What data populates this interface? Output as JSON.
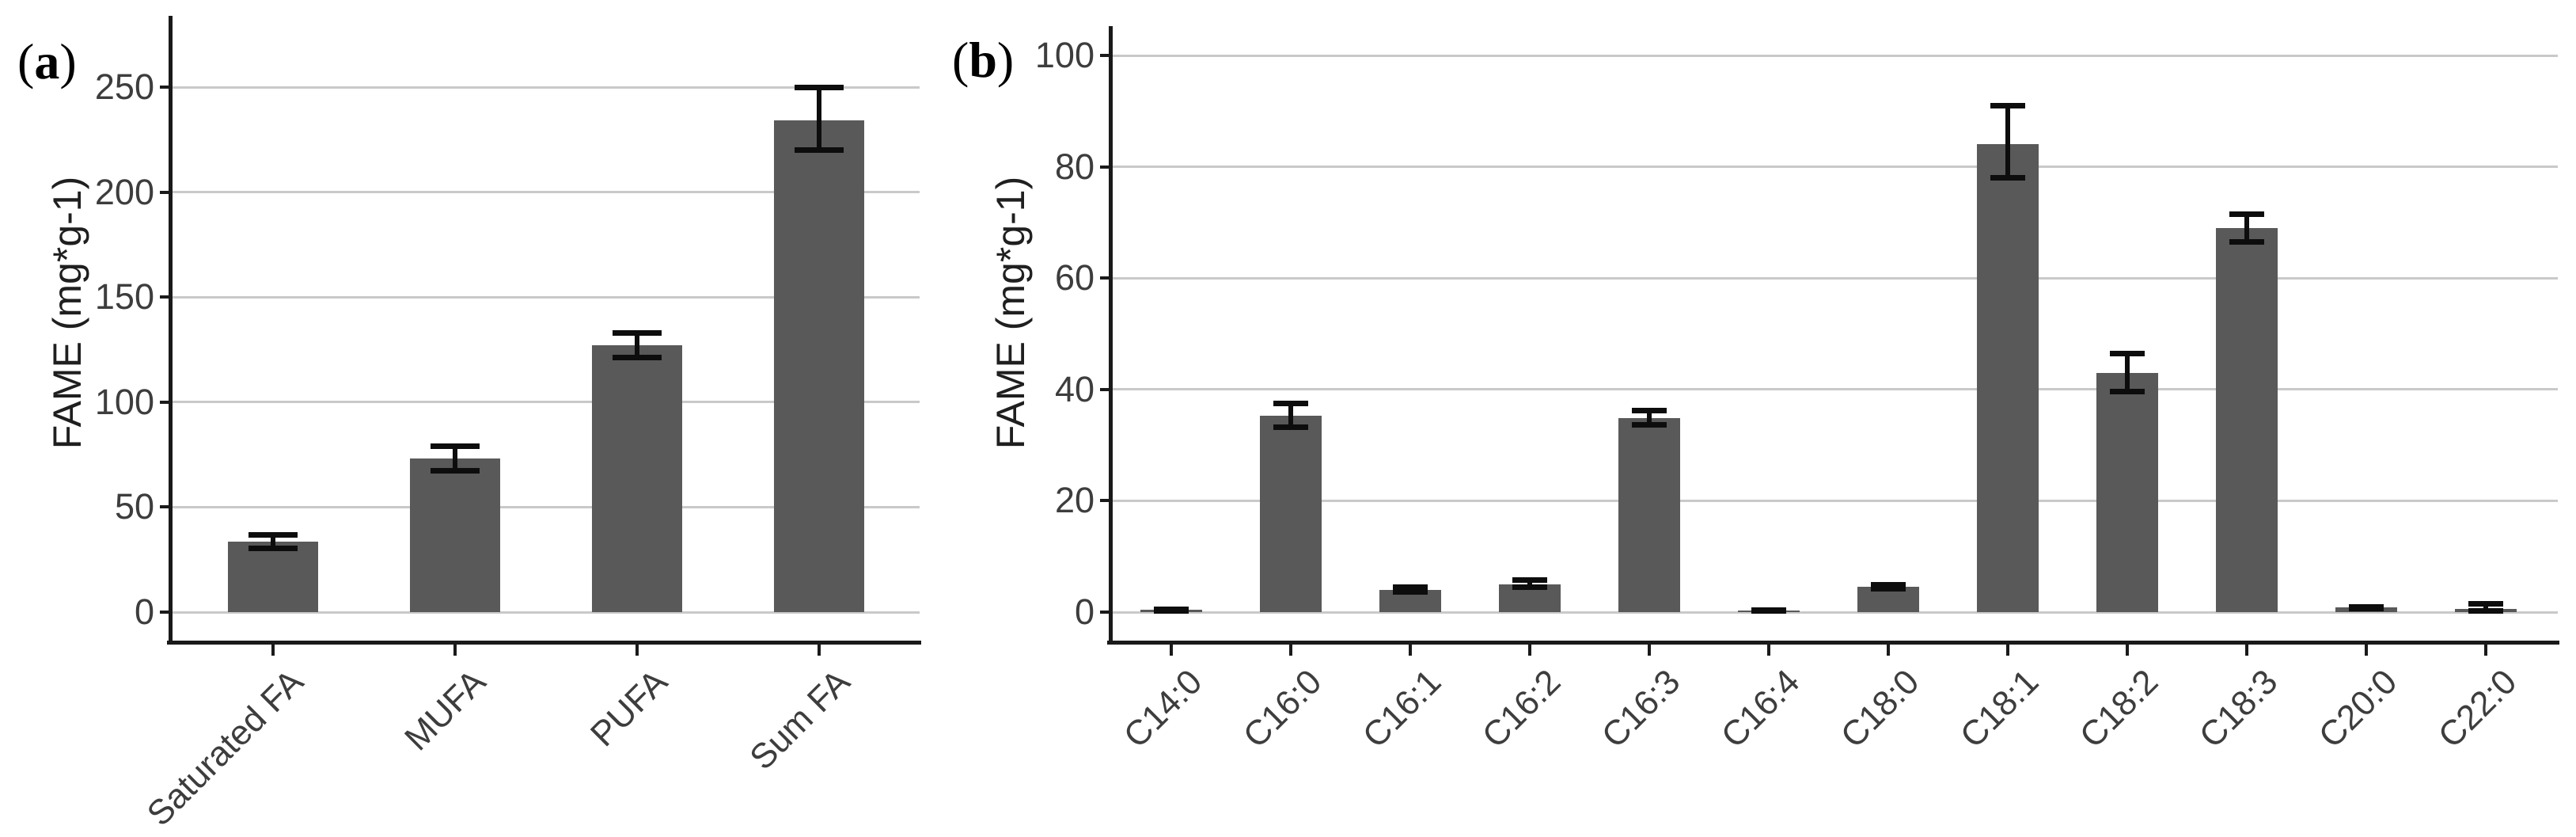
{
  "figure_background": "#ffffff",
  "colors": {
    "bar": "#595959",
    "grid": "#c9c9c9",
    "axis": "#1a1a1a",
    "error": "#0d0d0d",
    "tick_text": "#3d3d3d",
    "title_text": "#1f1f1f",
    "panel_label_text": "#000000"
  },
  "chart_data": [
    {
      "type": "bar",
      "panel_label": "(a)",
      "title": "",
      "xlabel": "",
      "ylabel": "FAME (mg*g-1)",
      "ylim": [
        0,
        265
      ],
      "yticks": [
        0,
        50,
        100,
        150,
        200,
        250
      ],
      "grid": true,
      "legend": false,
      "error_bars": true,
      "categories": [
        "Saturated FA",
        "MUFA",
        "PUFA",
        "Sum FA"
      ],
      "values": [
        33.5,
        73,
        127,
        234
      ],
      "error_low": [
        30,
        67,
        121,
        220
      ],
      "error_high": [
        37,
        79,
        133,
        250
      ]
    },
    {
      "type": "bar",
      "panel_label": "(b)",
      "title": "",
      "xlabel": "",
      "ylabel": "FAME (mg*g-1)",
      "ylim": [
        0,
        105
      ],
      "yticks": [
        0,
        20,
        40,
        60,
        80,
        100
      ],
      "grid": true,
      "legend": false,
      "error_bars": true,
      "categories": [
        "C14:0",
        "C16:0",
        "C16:1",
        "C16:2",
        "C16:3",
        "C16:4",
        "C18:0",
        "C18:1",
        "C18:2",
        "C18:3",
        "C20:0",
        "C22:0"
      ],
      "values": [
        0.4,
        35.3,
        4.0,
        5.0,
        34.8,
        0.25,
        4.5,
        84,
        43,
        69,
        0.8,
        0.6
      ],
      "error_low": [
        0.2,
        33.2,
        3.5,
        4.4,
        33.5,
        0.1,
        4.1,
        78,
        39.5,
        66.5,
        0.6,
        0.1
      ],
      "error_high": [
        0.6,
        37.6,
        4.6,
        5.9,
        36.3,
        0.4,
        5.0,
        91,
        46.5,
        71.5,
        1.0,
        1.5
      ]
    }
  ]
}
